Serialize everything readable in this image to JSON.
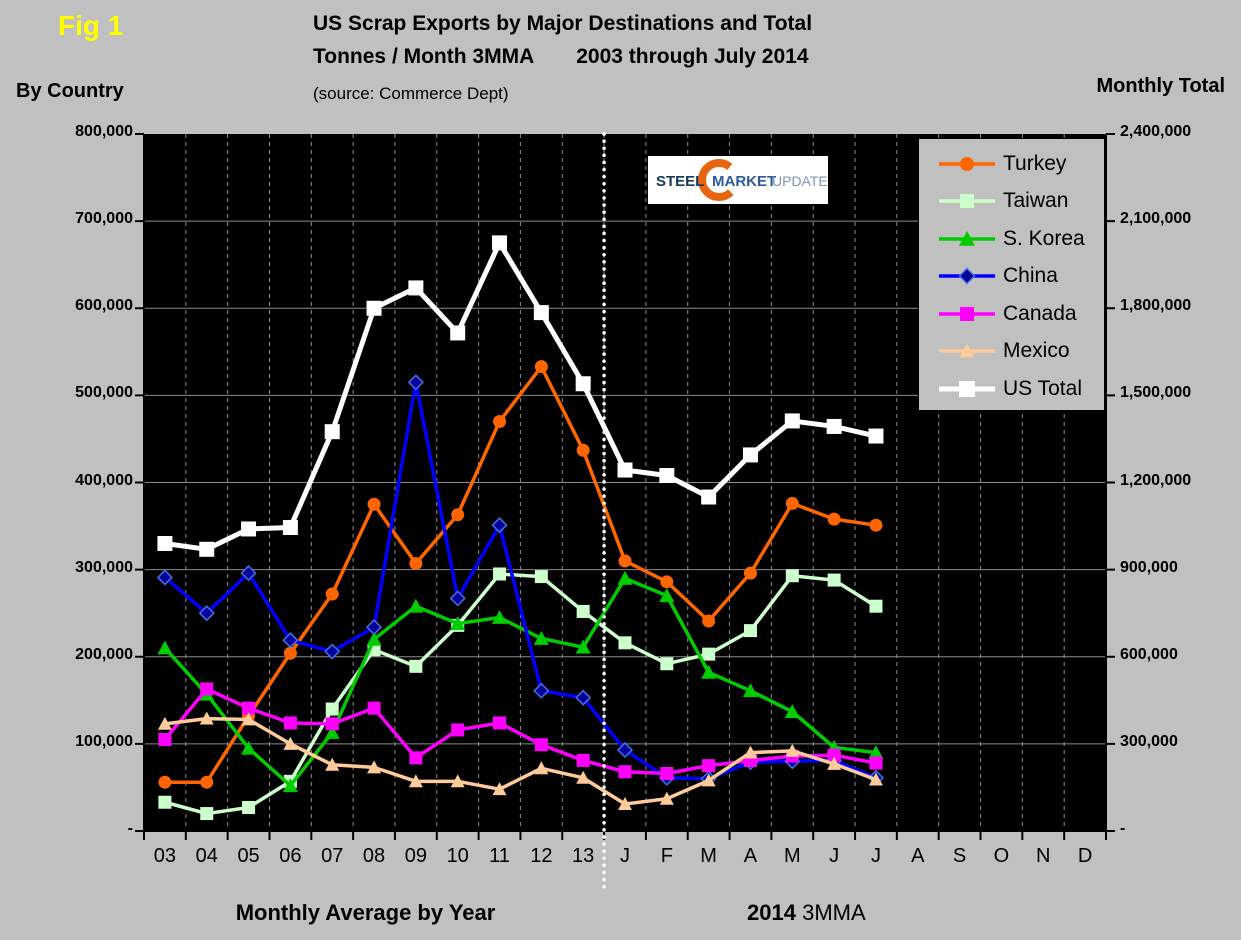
{
  "figure_label": "Fig 1",
  "header": {
    "title_line1": "US Scrap Exports by Major Destinations and Total",
    "title_line2_left": "Tonnes / Month 3MMA",
    "title_line2_right": "2003 through July 2014",
    "source": "(source:  Commerce Dept)",
    "left_axis_title": "By Country",
    "right_axis_title": "Monthly Total"
  },
  "logo": {
    "word1": "STEEL",
    "word2": "MARKET",
    "word3": "UPDATE",
    "crescent_color": "#e8650f",
    "word1_color": "#17365d",
    "word2_color": "#2e5a9e",
    "word3_color": "#7c95b5"
  },
  "captions": {
    "bottom_left": "Monthly Average by Year",
    "bottom_right_bold": "2014",
    "bottom_right_regular": "3MMA"
  },
  "chart_data": {
    "type": "line",
    "title": "US Scrap Exports by Major Destinations and Total Tonnes / Month 3MMA  2003 through July 2014",
    "plot_background": "#000000",
    "page_background": "#c0c0c0",
    "gridline_color": "#8c8c8c",
    "grid": "horizontal solid, vertical dashed",
    "separator_after_category_index": 10,
    "categories": [
      "03",
      "04",
      "05",
      "06",
      "07",
      "08",
      "09",
      "10",
      "11",
      "12",
      "13",
      "J",
      "F",
      "M",
      "A",
      "M",
      "J",
      "J",
      "A",
      "S",
      "O",
      "N",
      "D"
    ],
    "left_axis": {
      "min": 0,
      "max": 800000,
      "step": 100000,
      "tick_labels": [
        "800,000",
        "700,000",
        "600,000",
        "500,000",
        "400,000",
        "300,000",
        "200,000",
        "100,000",
        "-"
      ]
    },
    "right_axis": {
      "min": 0,
      "max": 2400000,
      "step": 300000,
      "tick_labels": [
        "2,400,000",
        "2,100,000",
        "1,800,000",
        "1,500,000",
        "1,200,000",
        "900,000",
        "600,000",
        "300,000",
        "-"
      ]
    },
    "series": [
      {
        "name": "Turkey",
        "color": "#ff6600",
        "marker": "circle",
        "axis": "left",
        "line_width": 3.5,
        "marker_size": 6.5,
        "values": [
          56000,
          56000,
          132000,
          204000,
          272000,
          375000,
          307000,
          363000,
          470000,
          533000,
          437000,
          310000,
          286000,
          241000,
          296000,
          376000,
          358000,
          351000,
          null,
          null,
          null,
          null,
          null
        ]
      },
      {
        "name": "Taiwan",
        "color": "#ccffcc",
        "marker": "square",
        "axis": "left",
        "line_width": 3.5,
        "marker_size": 6.5,
        "values": [
          33000,
          20000,
          27000,
          57000,
          140000,
          208000,
          189000,
          236000,
          295000,
          292000,
          252000,
          216000,
          192000,
          203000,
          230000,
          293000,
          288000,
          258000,
          null,
          null,
          null,
          null,
          null
        ]
      },
      {
        "name": "S. Korea",
        "color": "#00cc00",
        "marker": "triangle",
        "axis": "left",
        "line_width": 3.5,
        "marker_size": 7.5,
        "values": [
          210000,
          157000,
          95000,
          52000,
          113000,
          220000,
          258000,
          238000,
          245000,
          221000,
          211000,
          290000,
          270000,
          182000,
          161000,
          137000,
          96000,
          90000,
          null,
          null,
          null,
          null,
          null
        ]
      },
      {
        "name": "China",
        "color": "#0000ff",
        "marker": "diamond",
        "marker_color": "#000099",
        "marker_edge": "#4472e8",
        "axis": "left",
        "line_width": 3.5,
        "marker_size": 7,
        "values": [
          291000,
          250000,
          296000,
          219000,
          206000,
          234000,
          515000,
          267000,
          351000,
          161000,
          153000,
          93000,
          61000,
          60000,
          79000,
          80000,
          81000,
          61000,
          null,
          null,
          null,
          null,
          null
        ]
      },
      {
        "name": "Canada",
        "color": "#ff00ff",
        "marker": "square",
        "axis": "left",
        "line_width": 3.5,
        "marker_size": 6.5,
        "values": [
          105000,
          163000,
          141000,
          124000,
          123000,
          141000,
          84000,
          116000,
          124000,
          99000,
          81000,
          68000,
          66000,
          75000,
          81000,
          86000,
          87000,
          78000,
          null,
          null,
          null,
          null,
          null
        ]
      },
      {
        "name": "Mexico",
        "color": "#ffcc99",
        "marker": "triangle",
        "axis": "left",
        "line_width": 3.5,
        "marker_size": 7,
        "values": [
          123000,
          129000,
          128000,
          100000,
          76000,
          73000,
          57000,
          57000,
          48000,
          72000,
          61000,
          31000,
          37000,
          58000,
          90000,
          92000,
          77000,
          59000,
          null,
          null,
          null,
          null,
          null
        ]
      },
      {
        "name": "US Total",
        "color": "#ffffff",
        "marker": "square",
        "axis": "right",
        "line_width": 5,
        "marker_size": 7.5,
        "values": [
          990000,
          970000,
          1040000,
          1045000,
          1375000,
          1800000,
          1870000,
          1715000,
          2025000,
          1785000,
          1540000,
          1243000,
          1224000,
          1150000,
          1295000,
          1412000,
          1393000,
          1360000,
          null,
          null,
          null,
          null,
          null
        ]
      }
    ],
    "legend_position": "top-right"
  }
}
